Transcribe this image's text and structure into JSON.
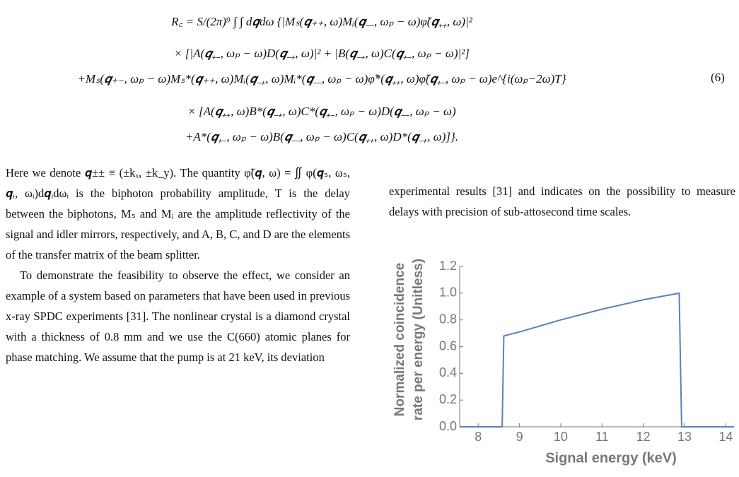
{
  "equation": {
    "lines": [
      "R꜀ = S/(2π)⁹ ∫ ∫ d𝒒dω {|Mₛ(𝒒₊₊, ω)Mᵢ(𝒒₋₋, ωₚ − ω)φ̃(𝒒₊₊, ω)|²",
      "× [|A(𝒒₊₋, ωₚ − ω)D(𝒒₋₊, ω)|² + |B(𝒒₋₊, ω)C(𝒒₊₋, ωₚ − ω)|²]",
      "+Mₛ(𝒒₊₋, ωₚ − ω)Mₛ*(𝒒₊₊, ω)Mᵢ(𝒒₋₊, ω)Mᵢ*(𝒒₋₋, ωₚ − ω)φ̃*(𝒒₊₊, ω)φ̃(𝒒₊₋, ωₚ − ω)e^{i(ωₚ−2ω)T}",
      "× [A(𝒒₊₊, ω)B*(𝒒₋₊, ω)C*(𝒒₊₋, ωₚ − ω)D(𝒒₋₋, ωₚ − ω)",
      "+A*(𝒒₊₋, ωₚ − ω)B(𝒒₋₋, ωₚ − ω)C(𝒒₊₊, ω)D*(𝒒₋₊, ω)]}."
    ],
    "number": "(6)"
  },
  "left_column": {
    "paragraphs": [
      "Here we denote 𝒒±± ≡ (±kₓ, ±k_y). The quantity φ̃(𝒒, ω) = ∬ φ(𝒒ₛ, ωₛ, 𝒒ᵢ, ωᵢ)d𝒒ᵢdωᵢ is the biphoton probability amplitude, T is the delay between the biphotons, Mₛ and Mᵢ are the amplitude reflectivity of the signal and idler mirrors, respectively, and A, B, C, and D are the elements of the transfer matrix of the beam splitter.",
      "To demonstrate the feasibility to observe the effect, we consider an example of a system based on parameters that have been used in previous x-ray SPDC experiments [31]. The nonlinear crystal is a diamond crystal with a thickness of 0.8 mm and we use the C(660) atomic planes for phase matching. We assume that the pump is at 21 keV, its deviation"
    ]
  },
  "right_column": {
    "paragraph": "experimental results [31] and indicates on the possibility to measure delays with precision of sub-attosecond time scales."
  },
  "chart_data": {
    "type": "line",
    "x": [
      7.55,
      8.58,
      8.62,
      9,
      10,
      11,
      12,
      12.87,
      12.93,
      14,
      14.2
    ],
    "values": [
      0,
      0,
      0.68,
      0.71,
      0.8,
      0.88,
      0.95,
      1.0,
      0,
      0,
      0
    ],
    "color": "#5b81b8",
    "xlim": [
      7.55,
      14.2
    ],
    "ylim": [
      0,
      1.2
    ],
    "xticks": [
      8,
      9,
      10,
      11,
      12,
      13,
      14
    ],
    "yticks": [
      {
        "value": 0,
        "label": "0.0"
      },
      0.2,
      0.4,
      0.6,
      0.8,
      {
        "value": 1,
        "label": "1.0"
      },
      1.2
    ],
    "xlabel": "Signal energy (keV)",
    "ylabel": [
      "Normalized coincidence",
      "rate per energy (Unitless)"
    ]
  }
}
